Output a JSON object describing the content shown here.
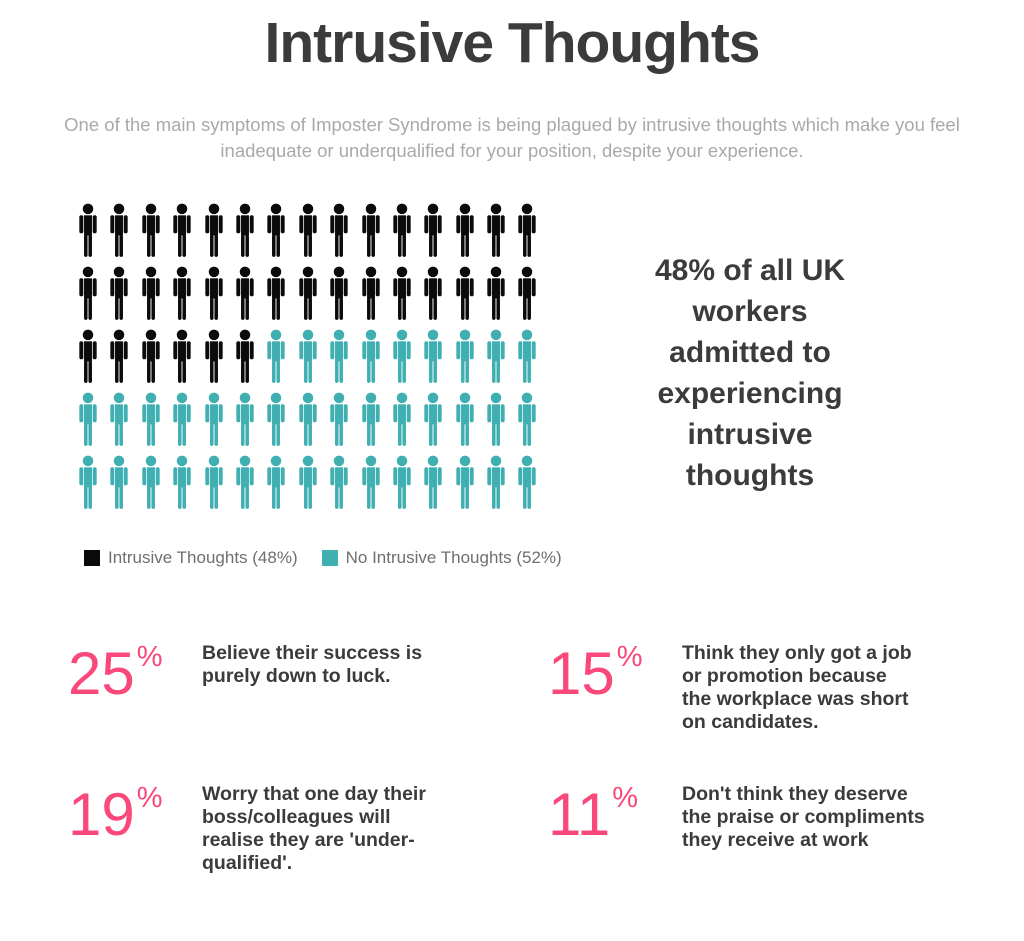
{
  "page": {
    "title": "Intrusive Thoughts",
    "subtitle": "One of the main symptoms of Imposter Syndrome is being plagued by intrusive thoughts which make you feel inadequate or underqualified for your position, despite your experience."
  },
  "colors": {
    "accent_pink": "#F94879",
    "dark_text": "#3B3B3B",
    "subtitle_gray": "#A9A9A9",
    "legend_gray": "#6F6F6F",
    "intrusive_black": "#0B0B0B",
    "no_intrusive_teal": "#3FAFB1"
  },
  "chart_data": {
    "type": "pictogram",
    "title": "",
    "unit": "person-icon",
    "total_icons": 75,
    "icons_per_row": 15,
    "rows": 5,
    "series": [
      {
        "name": "Intrusive Thoughts (48%)",
        "value_pct": 48,
        "icon_count": 36,
        "color": "#0B0B0B"
      },
      {
        "name": "No Intrusive Thoughts (52%)",
        "value_pct": 52,
        "icon_count": 39,
        "color": "#3FAFB1"
      }
    ],
    "legend_position": "bottom-left",
    "callout": "48% of all UK\nworkers\nadmitted to\nexperiencing\nintrusive\nthoughts"
  },
  "stats": [
    {
      "value": "25",
      "unit": "%",
      "text": "Believe their success is\npurely  down to luck."
    },
    {
      "value": "15",
      "unit": "%",
      "text": "Think they only got a job\nor promotion because\nthe workplace was short\non candidates."
    },
    {
      "value": "19",
      "unit": "%",
      "text": "Worry that one day their\nboss/colleagues will\nrealise they are 'under-\nqualified'."
    },
    {
      "value": "11",
      "unit": "%",
      "text": "Don't think they deserve\nthe praise or compliments\nthey receive at work"
    }
  ]
}
